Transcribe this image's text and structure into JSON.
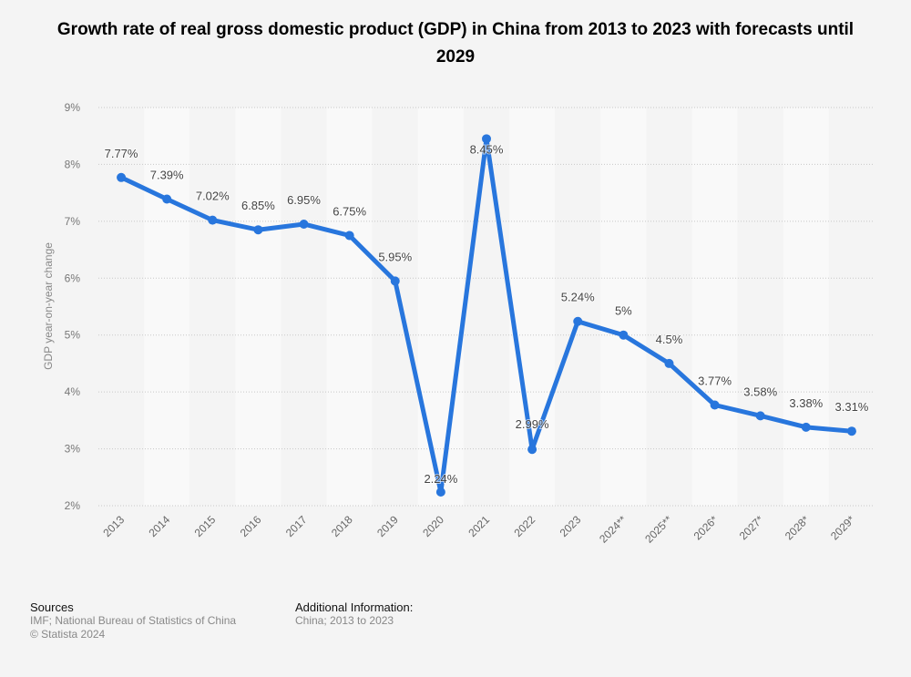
{
  "chart_data": {
    "type": "line",
    "title": "Growth rate of real gross domestic product (GDP) in China from 2013 to 2023 with forecasts until 2029",
    "xlabel": "",
    "ylabel": "GDP year-on-year change",
    "categories": [
      "2013",
      "2014",
      "2015",
      "2016",
      "2017",
      "2018",
      "2019",
      "2020",
      "2021",
      "2022",
      "2023",
      "2024**",
      "2025**",
      "2026*",
      "2027*",
      "2028*",
      "2029*"
    ],
    "series": [
      {
        "name": "GDP year-on-year change",
        "values": [
          7.77,
          7.39,
          7.02,
          6.85,
          6.95,
          6.75,
          5.95,
          2.24,
          8.45,
          2.99,
          5.24,
          5.0,
          4.5,
          3.77,
          3.58,
          3.38,
          3.31
        ],
        "labels": [
          "7.77%",
          "7.39%",
          "7.02%",
          "6.85%",
          "6.95%",
          "6.75%",
          "5.95%",
          "2.24%",
          "8.45%",
          "2.99%",
          "5.24%",
          "5%",
          "4.5%",
          "3.77%",
          "3.58%",
          "3.38%",
          "3.31%"
        ],
        "color": "#2876dd"
      }
    ],
    "ylim": [
      2,
      9
    ],
    "yticks": [
      2,
      3,
      4,
      5,
      6,
      7,
      8,
      9
    ],
    "ytick_labels": [
      "2%",
      "3%",
      "4%",
      "5%",
      "6%",
      "7%",
      "8%",
      "9%"
    ],
    "grid": true,
    "legend": "none"
  },
  "footer": {
    "sources_heading": "Sources",
    "sources_text": "IMF; National Bureau of Statistics of China",
    "copyright": "© Statista 2024",
    "additional_heading": "Additional Information:",
    "additional_text": "China; 2013 to 2023"
  }
}
